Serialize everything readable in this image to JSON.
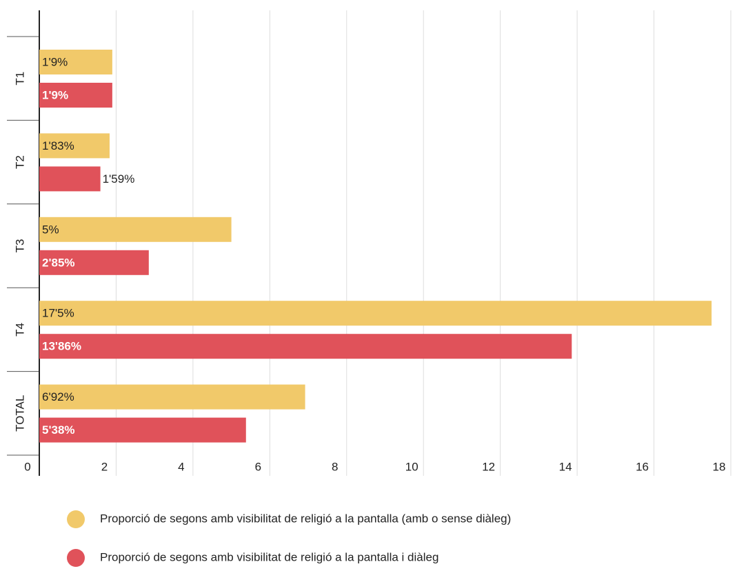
{
  "chart_data": {
    "type": "bar",
    "orientation": "horizontal",
    "categories": [
      "T1",
      "T2",
      "T3",
      "T4",
      "TOTAL"
    ],
    "series": [
      {
        "name": "Proporció de segons amb visibilitat de religió a la pantalla (amb o sense diàleg)",
        "color": "#f1c96a",
        "values": [
          1.9,
          1.83,
          5,
          17.5,
          6.92
        ],
        "value_labels": [
          "1'9%",
          "1'83%",
          "5%",
          "17'5%",
          "6'92%"
        ]
      },
      {
        "name": "Proporció de segons amb visibilitat de religió a la pantalla i diàleg",
        "color": "#e0525a",
        "values": [
          1.9,
          1.59,
          2.85,
          13.86,
          5.38
        ],
        "value_labels": [
          "1'9%",
          "1'59%",
          "2'85%",
          "13'86%",
          "5'38%"
        ]
      }
    ],
    "xlim": [
      0,
      18
    ],
    "xticks": [
      0,
      2,
      4,
      6,
      8,
      10,
      12,
      14,
      16,
      18
    ],
    "grid": true
  }
}
